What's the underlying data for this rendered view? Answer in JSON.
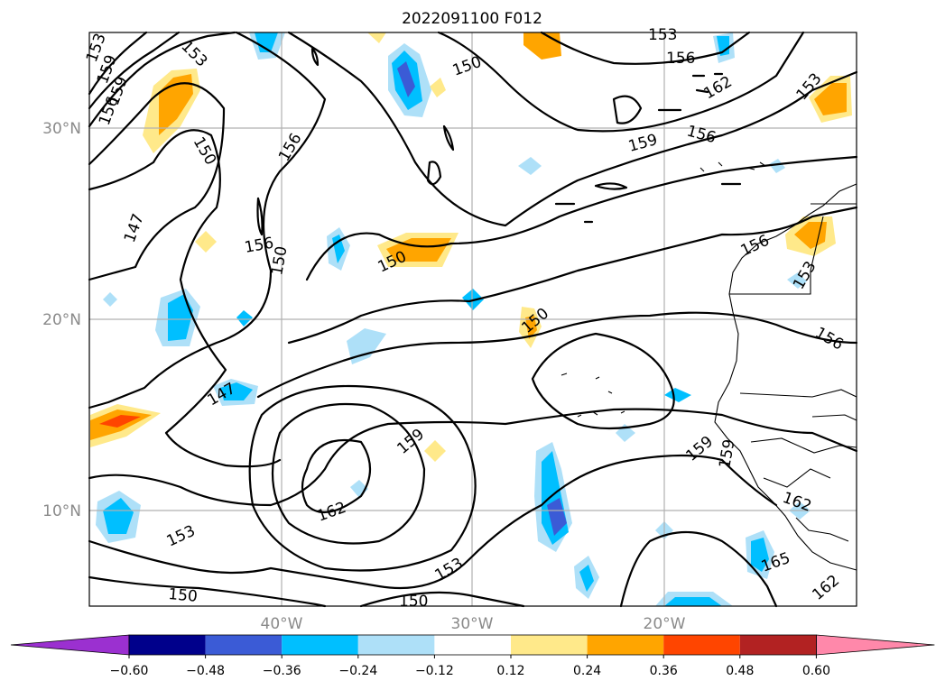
{
  "map": {
    "title": "2022091100 F012",
    "lat_labels": [
      "30°N",
      "20°N",
      "10°N"
    ],
    "lon_labels": [
      "40°W",
      "30°W",
      "20°W"
    ],
    "contour_labels": [
      "153",
      "159",
      "159",
      "156",
      "153",
      "150",
      "147",
      "156",
      "150",
      "150",
      "156",
      "153",
      "150",
      "153",
      "156",
      "162",
      "153",
      "159",
      "156",
      "156",
      "153",
      "150",
      "156",
      "147",
      "159",
      "162",
      "153",
      "153",
      "150",
      "150",
      "159",
      "159",
      "162",
      "165",
      "162"
    ]
  },
  "colorbar": {
    "ticks": [
      "−0.60",
      "−0.48",
      "−0.36",
      "−0.24",
      "−0.12",
      "0.12",
      "0.24",
      "0.36",
      "0.48",
      "0.60"
    ],
    "colors": [
      "#9b30d0",
      "#00008b",
      "#3b5bd6",
      "#00bfff",
      "#aee0f8",
      "#ffffff",
      "#ffe98a",
      "#ffa500",
      "#ff4500",
      "#b22222",
      "#ff88aa"
    ]
  }
}
